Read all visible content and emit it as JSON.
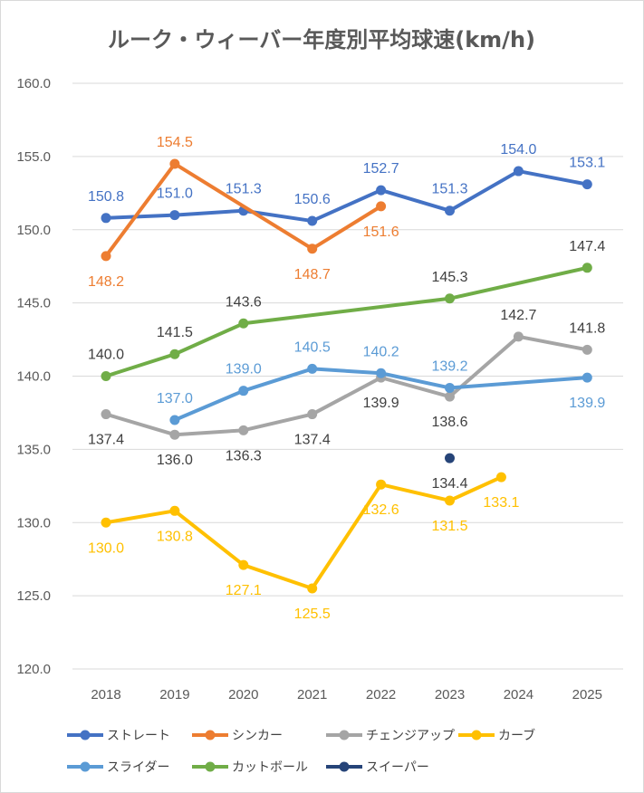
{
  "chart_data": {
    "type": "line",
    "title": "ルーク・ウィーバー年度別平均球速(km/h)",
    "xlabel": "",
    "ylabel": "",
    "categories": [
      "2018",
      "2019",
      "2020",
      "2021",
      "2022",
      "2023",
      "2024",
      "2025"
    ],
    "ylim": [
      120,
      160
    ],
    "yticks": [
      "120.0",
      "125.0",
      "130.0",
      "135.0",
      "140.0",
      "145.0",
      "150.0",
      "155.0",
      "160.0"
    ],
    "grid": true,
    "legend_position": "bottom",
    "series": [
      {
        "name": "ストレート",
        "color": "#4472c4",
        "values": [
          150.8,
          151.0,
          151.3,
          150.6,
          152.7,
          151.3,
          154.0,
          153.1
        ],
        "labels": [
          "150.8",
          "151.0",
          "151.3",
          "150.6",
          "152.7",
          "151.3",
          "154.0",
          "153.1"
        ],
        "label_pos": [
          "above",
          "above",
          "above",
          "above",
          "above",
          "above",
          "above",
          "above"
        ]
      },
      {
        "name": "シンカー",
        "color": "#ed7d31",
        "values": [
          148.2,
          154.5,
          null,
          148.7,
          151.6,
          null,
          null,
          null
        ],
        "labels": [
          "148.2",
          "154.5",
          "",
          "148.7",
          "151.6",
          "",
          "",
          ""
        ],
        "label_pos": [
          "below",
          "above",
          "",
          "below",
          "below",
          "",
          "",
          ""
        ]
      },
      {
        "name": "チェンジアップ",
        "color": "#a5a5a5",
        "values": [
          137.4,
          136.0,
          136.3,
          137.4,
          139.9,
          138.6,
          142.7,
          141.8
        ],
        "labels": [
          "137.4",
          "136.0",
          "136.3",
          "137.4",
          "139.9",
          "138.6",
          "142.7",
          "141.8"
        ],
        "label_pos": [
          "below",
          "below",
          "below",
          "below",
          "below",
          "below",
          "above",
          "above"
        ]
      },
      {
        "name": "カーブ",
        "color": "#ffc000",
        "values": [
          130.0,
          130.8,
          127.1,
          125.5,
          132.6,
          131.5,
          null,
          133.1
        ],
        "labels": [
          "130.0",
          "130.8",
          "127.1",
          "125.5",
          "132.6",
          "131.5",
          "",
          "133.1"
        ],
        "label_pos": [
          "below",
          "below",
          "below",
          "below",
          "below",
          "below",
          "",
          "below"
        ],
        "point_x": [
          0,
          1,
          2,
          3,
          4,
          5,
          5.75,
          5.75
        ]
      },
      {
        "name": "スライダー",
        "color": "#5b9bd5",
        "values": [
          null,
          137.0,
          139.0,
          140.5,
          140.2,
          139.2,
          null,
          139.9
        ],
        "labels": [
          "",
          "137.0",
          "139.0",
          "140.5",
          "140.2",
          "139.2",
          "",
          "139.9"
        ],
        "label_pos": [
          "",
          "above",
          "above",
          "above",
          "above",
          "above",
          "",
          "below"
        ]
      },
      {
        "name": "カットボール",
        "color": "#70ad47",
        "values": [
          140.0,
          141.5,
          143.6,
          null,
          null,
          145.3,
          null,
          147.4
        ],
        "labels": [
          "140.0",
          "141.5",
          "143.6",
          "",
          "",
          "145.3",
          "",
          "147.4"
        ],
        "label_pos": [
          "above",
          "above",
          "above",
          "",
          "",
          "above",
          "",
          "above"
        ]
      },
      {
        "name": "スイーパー",
        "color": "#264478",
        "values": [
          null,
          null,
          null,
          null,
          null,
          134.4,
          null,
          null
        ],
        "labels": [
          "",
          "",
          "",
          "",
          "",
          "134.4",
          "",
          ""
        ],
        "label_pos": [
          "",
          "",
          "",
          "",
          "",
          "below",
          "",
          ""
        ]
      }
    ]
  }
}
